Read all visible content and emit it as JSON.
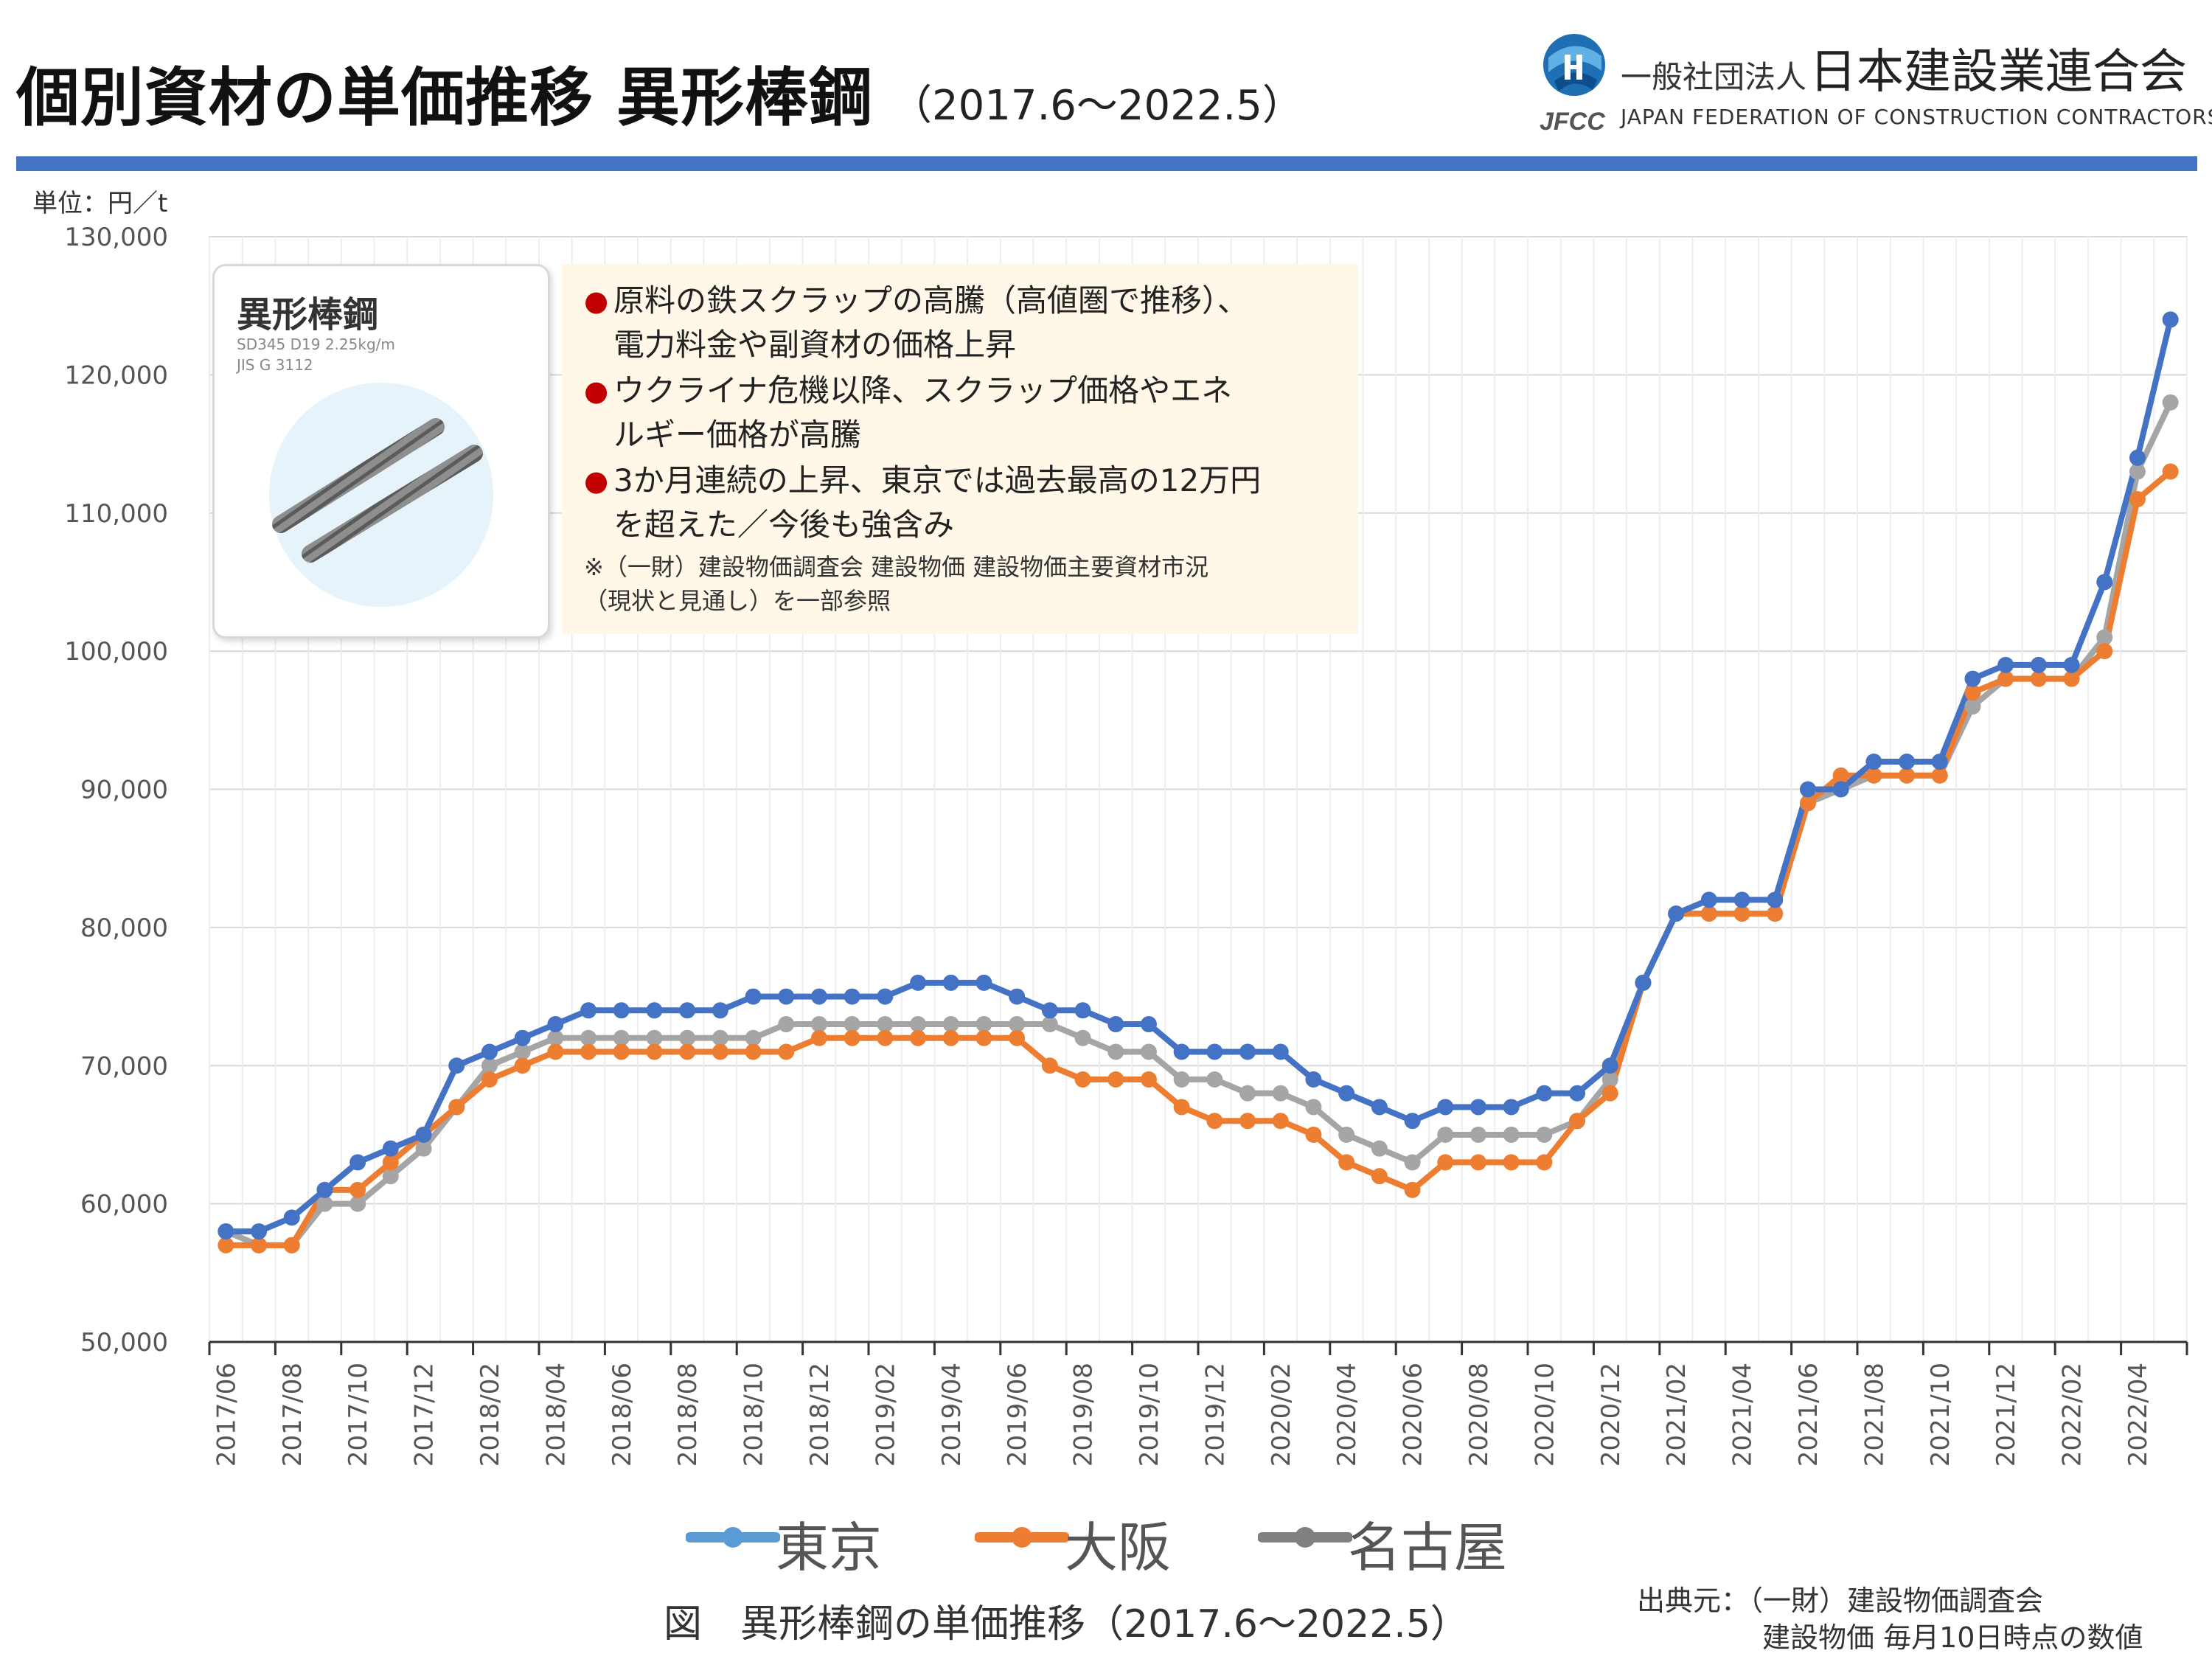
{
  "header": {
    "title": "個別資材の単価推移 異形棒鋼",
    "period": "（2017.6～2022.5）"
  },
  "logo": {
    "org_type": "一般社団法人",
    "org_name": "日本建設業連合会",
    "org_name_en": "JAPAN FEDERATION OF CONSTRUCTION CONTRACTORS",
    "mark_text": "JFCC"
  },
  "product_card": {
    "title": "異形棒鋼",
    "spec_line1": "SD345 D19 2.25kg/m",
    "spec_line2": "JIS G 3112",
    "icon": "rebar-icon"
  },
  "notes": {
    "items": [
      {
        "line1": "原料の鉄スクラップの高騰（高値圏で推移）、",
        "line2": "電力料金や副資材の価格上昇"
      },
      {
        "line1": "ウクライナ危機以降、スクラップ価格やエネ",
        "line2": "ルギー価格が高騰"
      },
      {
        "line1": "3か月連続の上昇、東京では過去最高の12万円",
        "line2": "を超えた／今後も強含み"
      }
    ],
    "reference_line1": "※（一財）建設物価調査会 建設物価 建設物価主要資材市況",
    "reference_line2": "（現状と見通し）を一部参照",
    "bullet_color": "#c00000"
  },
  "caption": "図　異形棒鋼の単価推移（2017.6～2022.5）",
  "source": {
    "line1": "出典元：（一財）建設物価調査会",
    "line2": "建設物価 毎月10日時点の数値"
  },
  "chart_data": {
    "type": "line",
    "title": "異形棒鋼の単価推移（2017.6～2022.5）",
    "unit_label": "単位：円／t",
    "ylim": [
      50000,
      130000
    ],
    "y_ticks": [
      50000,
      60000,
      70000,
      80000,
      90000,
      100000,
      110000,
      120000,
      130000
    ],
    "y_tick_labels": [
      "50,000",
      "60,000",
      "70,000",
      "80,000",
      "90,000",
      "100,000",
      "110,000",
      "120,000",
      "130,000"
    ],
    "grid": true,
    "legend_position": "bottom",
    "x": [
      "2017/06",
      "2017/07",
      "2017/08",
      "2017/09",
      "2017/10",
      "2017/11",
      "2017/12",
      "2018/01",
      "2018/02",
      "2018/03",
      "2018/04",
      "2018/05",
      "2018/06",
      "2018/07",
      "2018/08",
      "2018/09",
      "2018/10",
      "2018/11",
      "2018/12",
      "2019/01",
      "2019/02",
      "2019/03",
      "2019/04",
      "2019/05",
      "2019/06",
      "2019/07",
      "2019/08",
      "2019/09",
      "2019/10",
      "2019/11",
      "2019/12",
      "2020/01",
      "2020/02",
      "2020/03",
      "2020/04",
      "2020/05",
      "2020/06",
      "2020/07",
      "2020/08",
      "2020/09",
      "2020/10",
      "2020/11",
      "2020/12",
      "2021/01",
      "2021/02",
      "2021/03",
      "2021/04",
      "2021/05",
      "2021/06",
      "2021/07",
      "2021/08",
      "2021/09",
      "2021/10",
      "2021/11",
      "2021/12",
      "2022/01",
      "2022/02",
      "2022/03",
      "2022/04",
      "2022/05"
    ],
    "x_tick_labels": [
      "2017/06",
      "2017/08",
      "2017/10",
      "2017/12",
      "2018/02",
      "2018/04",
      "2018/06",
      "2018/08",
      "2018/10",
      "2018/12",
      "2019/02",
      "2019/04",
      "2019/06",
      "2019/08",
      "2019/10",
      "2019/12",
      "2020/02",
      "2020/04",
      "2020/06",
      "2020/08",
      "2020/10",
      "2020/12",
      "2021/02",
      "2021/04",
      "2021/06",
      "2021/08",
      "2021/10",
      "2021/12",
      "2022/02",
      "2022/04"
    ],
    "series": [
      {
        "name": "東京",
        "color": "#4472c4",
        "legend_color": "#5b9bd5",
        "values": [
          58000,
          58000,
          59000,
          61000,
          63000,
          64000,
          65000,
          70000,
          71000,
          72000,
          73000,
          74000,
          74000,
          74000,
          74000,
          74000,
          75000,
          75000,
          75000,
          75000,
          75000,
          76000,
          76000,
          76000,
          75000,
          74000,
          74000,
          73000,
          73000,
          71000,
          71000,
          71000,
          71000,
          69000,
          68000,
          67000,
          66000,
          67000,
          67000,
          67000,
          68000,
          68000,
          70000,
          76000,
          81000,
          82000,
          82000,
          82000,
          90000,
          90000,
          92000,
          92000,
          92000,
          98000,
          99000,
          99000,
          99000,
          105000,
          114000,
          124000
        ]
      },
      {
        "name": "大阪",
        "color": "#ed7d31",
        "legend_color": "#ed7d31",
        "values": [
          57000,
          57000,
          57000,
          61000,
          61000,
          63000,
          65000,
          67000,
          69000,
          70000,
          71000,
          71000,
          71000,
          71000,
          71000,
          71000,
          71000,
          71000,
          72000,
          72000,
          72000,
          72000,
          72000,
          72000,
          72000,
          70000,
          69000,
          69000,
          69000,
          67000,
          66000,
          66000,
          66000,
          65000,
          63000,
          62000,
          61000,
          63000,
          63000,
          63000,
          63000,
          66000,
          68000,
          76000,
          81000,
          81000,
          81000,
          81000,
          89000,
          91000,
          91000,
          91000,
          91000,
          97000,
          98000,
          98000,
          98000,
          100000,
          111000,
          113000
        ]
      },
      {
        "name": "名古屋",
        "color": "#a5a5a5",
        "legend_color": "#808080",
        "values": [
          58000,
          57000,
          57000,
          60000,
          60000,
          62000,
          64000,
          67000,
          70000,
          71000,
          72000,
          72000,
          72000,
          72000,
          72000,
          72000,
          72000,
          73000,
          73000,
          73000,
          73000,
          73000,
          73000,
          73000,
          73000,
          73000,
          72000,
          71000,
          71000,
          69000,
          69000,
          68000,
          68000,
          67000,
          65000,
          64000,
          63000,
          65000,
          65000,
          65000,
          65000,
          66000,
          69000,
          76000,
          81000,
          81000,
          81000,
          81000,
          89000,
          90000,
          91000,
          91000,
          91000,
          96000,
          98000,
          98000,
          98000,
          101000,
          113000,
          118000
        ]
      }
    ]
  }
}
